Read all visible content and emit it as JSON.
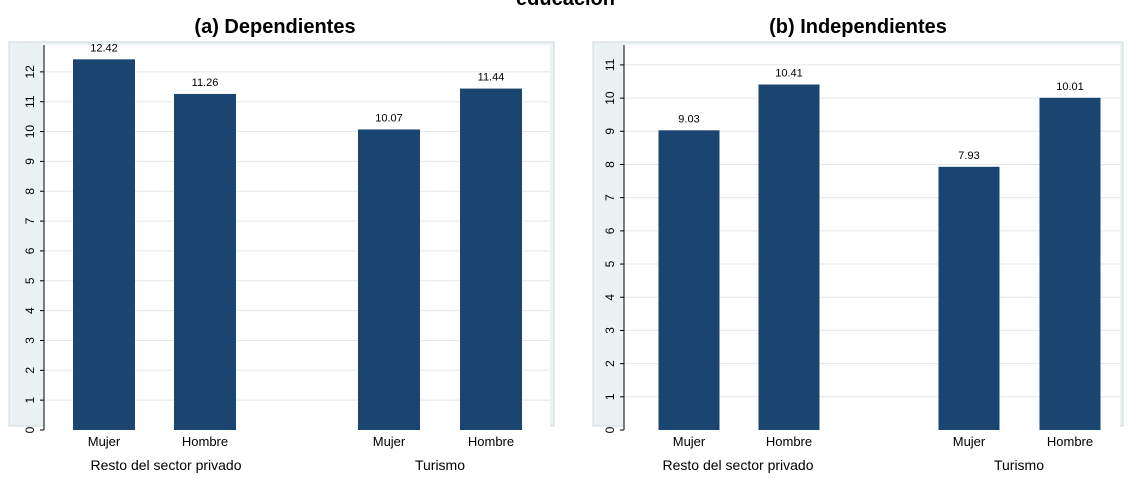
{
  "top_title": "educación",
  "chart_data": [
    {
      "type": "bar",
      "title": "(a) Dependientes",
      "groups": [
        {
          "label": "Resto del sector privado",
          "bars": [
            {
              "category": "Mujer",
              "value": 12.42,
              "label": "12.42"
            },
            {
              "category": "Hombre",
              "value": 11.26,
              "label": "11.26"
            }
          ]
        },
        {
          "label": "Turismo",
          "bars": [
            {
              "category": "Mujer",
              "value": 10.07,
              "label": "10.07"
            },
            {
              "category": "Hombre",
              "value": 11.44,
              "label": "11.44"
            }
          ]
        }
      ],
      "yticks": [
        "0",
        "1",
        "2",
        "3",
        "4",
        "5",
        "6",
        "7",
        "8",
        "9",
        "10",
        "11",
        "12"
      ],
      "ylim": [
        0,
        12.9
      ],
      "grid": true,
      "bar_color": "#1a4570",
      "background_color": "#eaf2f3"
    },
    {
      "type": "bar",
      "title": "(b) Independientes",
      "groups": [
        {
          "label": "Resto del sector privado",
          "bars": [
            {
              "category": "Mujer",
              "value": 9.03,
              "label": "9.03"
            },
            {
              "category": "Hombre",
              "value": 10.41,
              "label": "10.41"
            }
          ]
        },
        {
          "label": "Turismo",
          "bars": [
            {
              "category": "Mujer",
              "value": 7.93,
              "label": "7.93"
            },
            {
              "category": "Hombre",
              "value": 10.01,
              "label": "10.01"
            }
          ]
        }
      ],
      "yticks": [
        "0",
        "1",
        "2",
        "3",
        "4",
        "5",
        "6",
        "7",
        "8",
        "9",
        "10",
        "11"
      ],
      "ylim": [
        0,
        11.6
      ],
      "grid": true,
      "bar_color": "#1a4570",
      "background_color": "#eaf2f3"
    }
  ]
}
